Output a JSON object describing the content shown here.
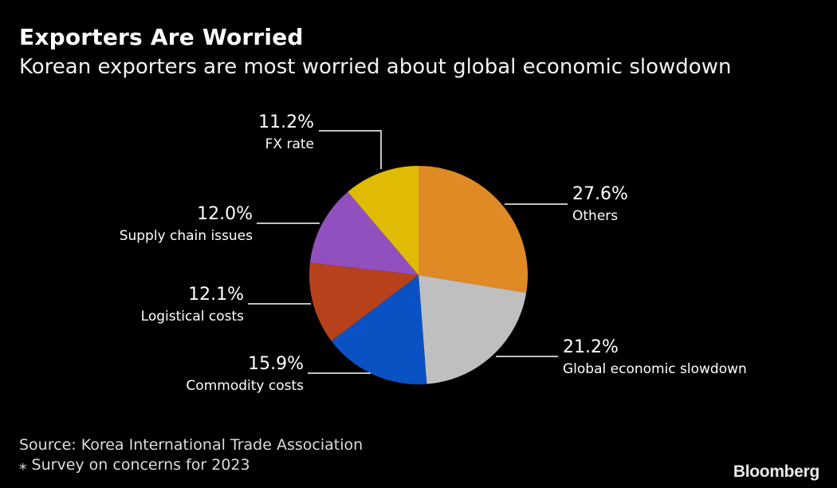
{
  "header": {
    "title": "Exporters Are Worried",
    "subtitle": "Korean exporters are most worried about global economic slowdown"
  },
  "footer": {
    "source": "Source: Korea International Trade Association",
    "note": "⁎ Survey on concerns for 2023",
    "brand": "Bloomberg"
  },
  "chart_data": {
    "type": "pie",
    "title": "Exporters Are Worried",
    "subtitle": "Korean exporters are most worried about global economic slowdown",
    "start": "12 o'clock, clockwise",
    "unit": "%",
    "slices": [
      {
        "label": "Others",
        "value": 27.6,
        "display": "27.6%",
        "color": "#e08a26"
      },
      {
        "label": "Global economic slowdown",
        "value": 21.2,
        "display": "21.2%",
        "color": "#bfbfbf"
      },
      {
        "label": "Commodity costs",
        "value": 15.9,
        "display": "15.9%",
        "color": "#0a52c4"
      },
      {
        "label": "Logistical costs",
        "value": 12.1,
        "display": "12.1%",
        "color": "#b7411b"
      },
      {
        "label": "Supply chain issues",
        "value": 12.0,
        "display": "12.0%",
        "color": "#9150bd"
      },
      {
        "label": "FX rate",
        "value": 11.2,
        "display": "11.2%",
        "color": "#dfbb05"
      }
    ]
  }
}
